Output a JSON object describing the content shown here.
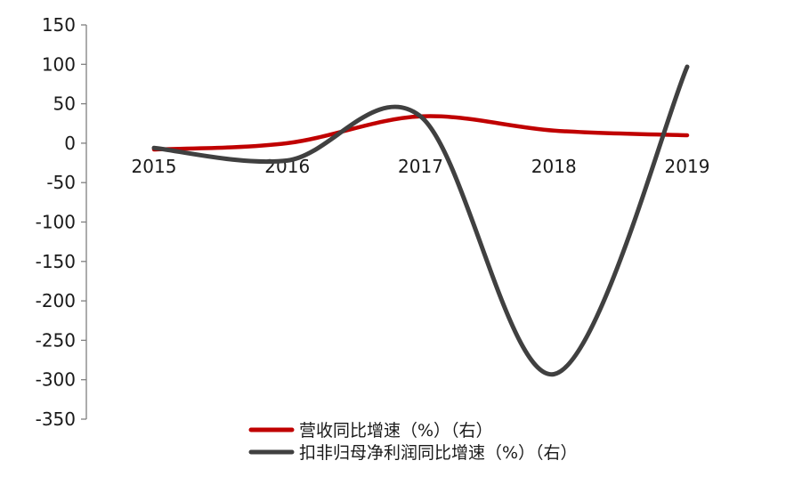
{
  "chart_data": {
    "type": "line",
    "smooth": true,
    "categories": [
      "2015",
      "2016",
      "2017",
      "2018",
      "2019"
    ],
    "series": [
      {
        "name": "营收同比增速（%）（右）",
        "values": [
          -8,
          0,
          34,
          16,
          10
        ],
        "color": "#C00000"
      },
      {
        "name": "扣非归母净利润同比增速（%）（右）",
        "values": [
          -6,
          -22,
          34,
          -293,
          97
        ],
        "color": "#404040"
      }
    ],
    "ylim": [
      -350,
      150
    ],
    "yticks": [
      150,
      100,
      50,
      0,
      -50,
      -100,
      -150,
      -200,
      -250,
      -300,
      -350
    ],
    "grid": false,
    "legend": "bottom",
    "axis_color": "#7f7f7f"
  }
}
